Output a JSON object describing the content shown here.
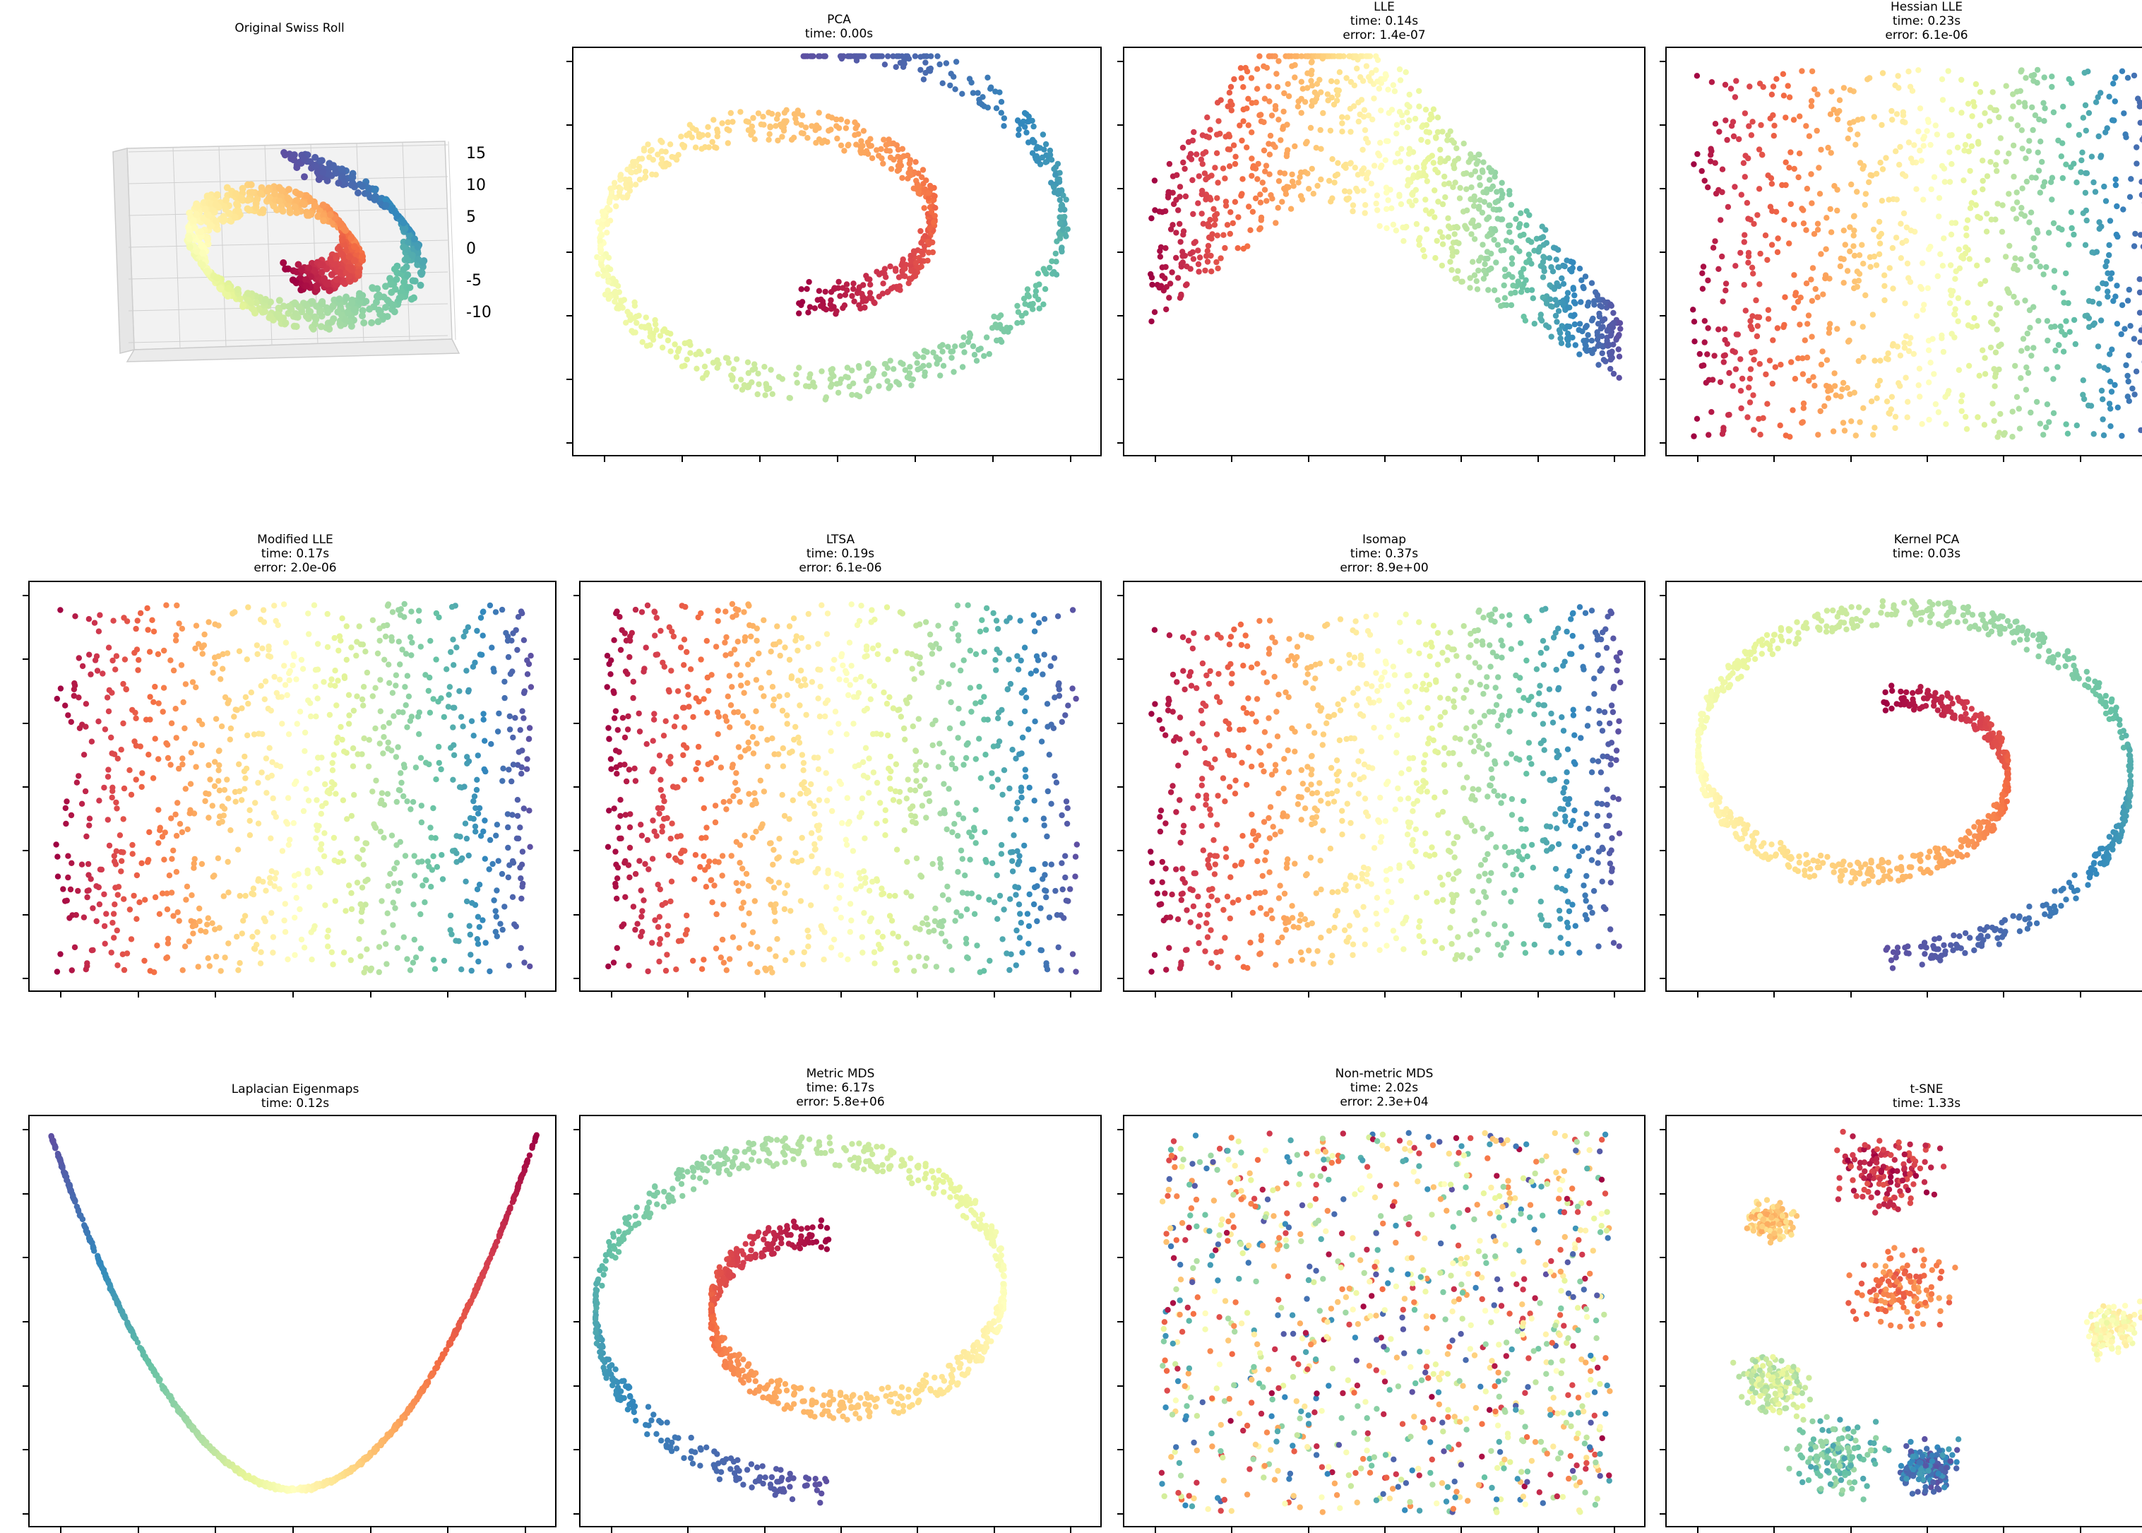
{
  "figure": {
    "panels": [
      {
        "id": "swiss-roll",
        "title": "Original Swiss Roll",
        "lines": []
      },
      {
        "id": "pca",
        "title": "PCA",
        "lines": [
          "time: 0.00s"
        ]
      },
      {
        "id": "lle",
        "title": "LLE",
        "lines": [
          "time: 0.14s",
          "error: 1.4e-07"
        ]
      },
      {
        "id": "hessian-lle",
        "title": "Hessian LLE",
        "lines": [
          "time: 0.23s",
          "error: 6.1e-06"
        ]
      },
      {
        "id": "modified-lle",
        "title": "Modified LLE",
        "lines": [
          "time: 0.17s",
          "error: 2.0e-06"
        ]
      },
      {
        "id": "ltsa",
        "title": "LTSA",
        "lines": [
          "time: 0.19s",
          "error: 6.1e-06"
        ]
      },
      {
        "id": "isomap",
        "title": "Isomap",
        "lines": [
          "time: 0.37s",
          "error: 8.9e+00"
        ]
      },
      {
        "id": "kernel-pca",
        "title": "Kernel PCA",
        "lines": [
          "time: 0.03s"
        ]
      },
      {
        "id": "laplacian-eigenmaps",
        "title": "Laplacian Eigenmaps",
        "lines": [
          "time: 0.12s"
        ]
      },
      {
        "id": "metric-mds",
        "title": "Metric MDS",
        "lines": [
          "time: 6.17s",
          "error: 5.8e+06"
        ]
      },
      {
        "id": "non-metric-mds",
        "title": "Non-metric MDS",
        "lines": [
          "time: 2.02s",
          "error: 2.3e+04"
        ]
      },
      {
        "id": "t-sne",
        "title": "t-SNE",
        "lines": [
          "time: 1.33s"
        ]
      }
    ]
  },
  "chart_data": [
    {
      "type": "scatter",
      "title": "Original Swiss Roll",
      "projection": "3d",
      "z_ticks": [
        "15",
        "10",
        "5",
        "0",
        "-5",
        "-10"
      ],
      "colormap": "Spectral",
      "n_points": 1500
    },
    {
      "type": "scatter",
      "title": "PCA",
      "subtitle": "time: 0.00s",
      "colormap": "Spectral",
      "tick_labels": false
    },
    {
      "type": "scatter",
      "title": "LLE",
      "subtitle": "time: 0.14s\nerror: 1.4e-07",
      "colormap": "Spectral",
      "tick_labels": false
    },
    {
      "type": "scatter",
      "title": "Hessian LLE",
      "subtitle": "time: 0.23s\nerror: 6.1e-06",
      "colormap": "Spectral",
      "tick_labels": false
    },
    {
      "type": "scatter",
      "title": "Modified LLE",
      "subtitle": "time: 0.17s\nerror: 2.0e-06",
      "colormap": "Spectral",
      "tick_labels": false
    },
    {
      "type": "scatter",
      "title": "LTSA",
      "subtitle": "time: 0.19s\nerror: 6.1e-06",
      "colormap": "Spectral",
      "tick_labels": false
    },
    {
      "type": "scatter",
      "title": "Isomap",
      "subtitle": "time: 0.37s\nerror: 8.9e+00",
      "colormap": "Spectral",
      "tick_labels": false
    },
    {
      "type": "scatter",
      "title": "Kernel PCA",
      "subtitle": "time: 0.03s",
      "colormap": "Spectral",
      "tick_labels": false
    },
    {
      "type": "scatter",
      "title": "Laplacian Eigenmaps",
      "subtitle": "time: 0.12s",
      "colormap": "Spectral",
      "tick_labels": false
    },
    {
      "type": "scatter",
      "title": "Metric MDS",
      "subtitle": "time: 6.17s\nerror: 5.8e+06",
      "colormap": "Spectral",
      "tick_labels": false
    },
    {
      "type": "scatter",
      "title": "Non-metric MDS",
      "subtitle": "time: 2.02s\nerror: 2.3e+04",
      "colormap": "Spectral",
      "tick_labels": false
    },
    {
      "type": "scatter",
      "title": "t-SNE",
      "subtitle": "time: 1.33s",
      "colormap": "Spectral",
      "tick_labels": false
    }
  ]
}
